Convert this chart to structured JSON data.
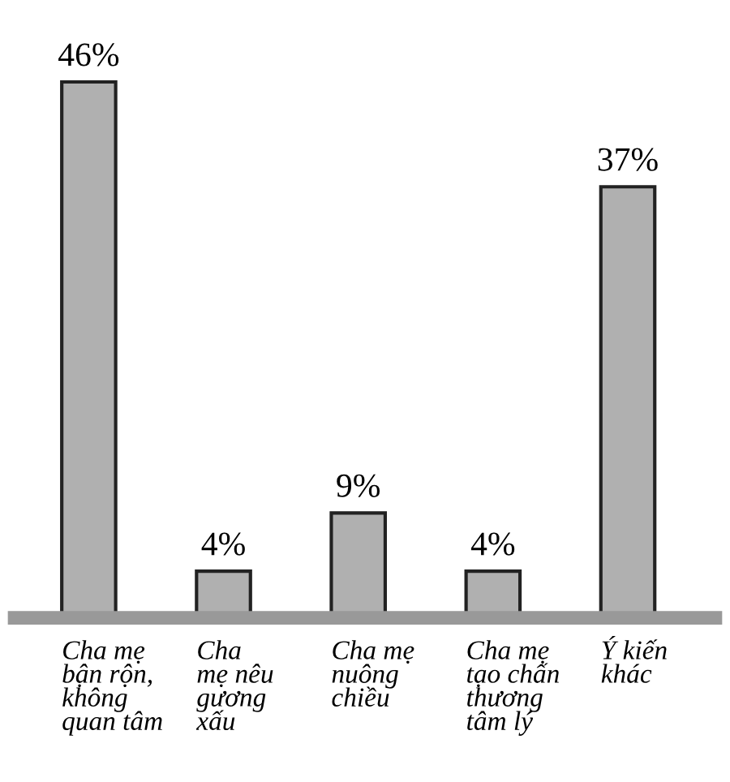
{
  "chart_data": {
    "type": "bar",
    "categories": [
      "Cha mẹ\nbận rộn,\nkhông\nquan tâm",
      "Cha\nmẹ nêu\ngương\nxấu",
      "Cha mẹ\nnuông\nchiều",
      "Cha mẹ\ntạo chấn\nthương\ntâm lý",
      "Ý kiến\nkhác"
    ],
    "values": [
      46,
      4,
      9,
      4,
      37
    ],
    "value_labels": [
      "46%",
      "4%",
      "9%",
      "4%",
      "37%"
    ],
    "color": "#b0b0b0"
  }
}
